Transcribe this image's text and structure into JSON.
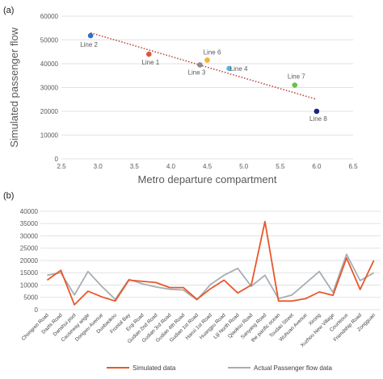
{
  "chart_data": [
    {
      "type": "scatter",
      "panel_label": "(a)",
      "title": "",
      "xlabel": "Metro departure compartment",
      "ylabel": "Simulated passenger flow",
      "xlim": [
        2.5,
        6.5
      ],
      "ylim": [
        0,
        60000
      ],
      "xticks": [
        "2.5",
        "3.0",
        "3.5",
        "4.0",
        "4.5",
        "5.0",
        "5.5",
        "6.0",
        "6.5"
      ],
      "yticks": [
        "0",
        "10000",
        "20000",
        "30000",
        "40000",
        "50000",
        "60000"
      ],
      "grid": "horizontal",
      "trendline": {
        "style": "dotted",
        "color": "#c0504d",
        "x": [
          2.9,
          6.0
        ],
        "y": [
          53000,
          25000
        ]
      },
      "points": [
        {
          "name": "Line 2",
          "x": 2.9,
          "y": 51800,
          "color": "#2f6fc7"
        },
        {
          "name": "Line 1",
          "x": 3.7,
          "y": 44000,
          "color": "#e2553b"
        },
        {
          "name": "Line 3",
          "x": 4.4,
          "y": 39500,
          "color": "#8c8c8c"
        },
        {
          "name": "Line 6",
          "x": 4.5,
          "y": 41500,
          "color": "#f2b431"
        },
        {
          "name": "Line 4",
          "x": 4.8,
          "y": 38000,
          "color": "#56b4e3"
        },
        {
          "name": "Line 7",
          "x": 5.7,
          "y": 31000,
          "color": "#6cc04a"
        },
        {
          "name": "Line 8",
          "x": 6.0,
          "y": 20000,
          "color": "#1a237e"
        }
      ]
    },
    {
      "type": "line",
      "panel_label": "(b)",
      "title": "",
      "xlabel": "",
      "ylabel": "",
      "ylim": [
        0,
        40000
      ],
      "yticks": [
        "0",
        "5000",
        "10000",
        "15000",
        "20000",
        "25000",
        "30000",
        "35000",
        "40000"
      ],
      "grid": "horizontal",
      "legend_position": "bottom",
      "categories": [
        "Chongren Road",
        "Dazhi Road",
        "Danshui pool",
        "Causeway angle",
        "Dongwu Avenue",
        "Duobaokou",
        "Frontal Bay",
        "Erqi Road",
        "Gudian 2nd Road",
        "Gudian 3rd Road",
        "Gudian 4th Road",
        "Gudian 1st Road",
        "Hanxi 1st Road",
        "Huangpu Road",
        "Lijl North Road",
        "Qiaokou Road",
        "Sanyang Road",
        "the pacific ocean",
        "Toudao Street",
        "Wuhuan Avenue",
        "Xirong",
        "Xuzhou New Village",
        "Courteous",
        "Friendship Road",
        "Zongguan"
      ],
      "series": [
        {
          "name": "Simulated data",
          "color": "#e8572b",
          "values": [
            12000,
            16000,
            2000,
            7500,
            5200,
            3500,
            12000,
            11500,
            11000,
            9000,
            9000,
            4200,
            8500,
            12000,
            6800,
            10000,
            35800,
            3500,
            3500,
            4500,
            7200,
            5800,
            21000,
            8200,
            20000
          ]
        },
        {
          "name": "Actual Passenger flow data",
          "color": "#a6aeb3",
          "values": [
            14000,
            15000,
            6000,
            15500,
            9500,
            4200,
            12300,
            10500,
            9200,
            8300,
            8000,
            4000,
            10200,
            14000,
            16800,
            9500,
            14000,
            4500,
            6000,
            10800,
            15500,
            7000,
            22500,
            11800,
            15000
          ]
        }
      ]
    }
  ]
}
